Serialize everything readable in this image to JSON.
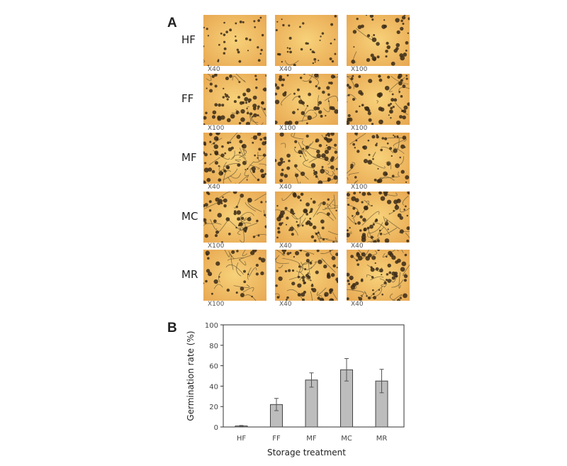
{
  "panel_a": {
    "letter": "A",
    "rows": [
      {
        "label": "HF",
        "images": [
          {
            "mag": "X40",
            "germ": 0.02,
            "dense": 0.35
          },
          {
            "mag": "X40",
            "germ": 0.02,
            "dense": 0.35
          },
          {
            "mag": "X100",
            "germ": 0.05,
            "dense": 0.5
          }
        ]
      },
      {
        "label": "FF",
        "images": [
          {
            "mag": "X100",
            "germ": 0.25,
            "dense": 1
          },
          {
            "mag": "X100",
            "germ": 0.3,
            "dense": 0.7
          },
          {
            "mag": "X100",
            "germ": 0.25,
            "dense": 1
          }
        ]
      },
      {
        "label": "MF",
        "images": [
          {
            "mag": "X40",
            "germ": 0.7,
            "dense": 1
          },
          {
            "mag": "X40",
            "germ": 0.6,
            "dense": 0.9
          },
          {
            "mag": "X100",
            "germ": 0.45,
            "dense": 0.6
          }
        ]
      },
      {
        "label": "MC",
        "images": [
          {
            "mag": "X100",
            "germ": 0.5,
            "dense": 0.6
          },
          {
            "mag": "X40",
            "germ": 0.55,
            "dense": 0.8
          },
          {
            "mag": "X40",
            "germ": 0.65,
            "dense": 1
          }
        ]
      },
      {
        "label": "MR",
        "images": [
          {
            "mag": "X100",
            "germ": 0.4,
            "dense": 0.2
          },
          {
            "mag": "X40",
            "germ": 0.6,
            "dense": 1
          },
          {
            "mag": "X40",
            "germ": 0.55,
            "dense": 1
          }
        ]
      }
    ]
  },
  "panel_b": {
    "letter": "B"
  },
  "chart_data": {
    "type": "bar",
    "categories": [
      "HF",
      "FF",
      "MF",
      "MC",
      "MR"
    ],
    "values": [
      1,
      22,
      46,
      56,
      45
    ],
    "errors": [
      0.5,
      6,
      7,
      11,
      11.5
    ],
    "xlabel": "Storage treatment",
    "ylabel": "Germination rate (%)",
    "ylim": [
      0,
      100
    ],
    "yticks": [
      "0",
      "20",
      "40",
      "60",
      "80",
      "100"
    ],
    "grid": false,
    "bar_color": "#bdbdbd"
  }
}
